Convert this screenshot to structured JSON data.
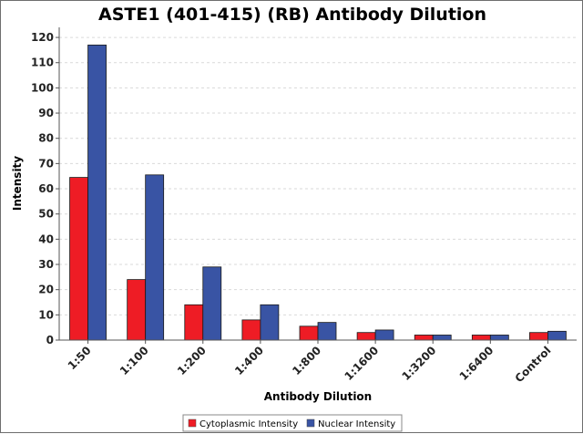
{
  "chart_data": {
    "type": "bar",
    "title": "ASTE1 (401-415) (RB) Antibody Dilution",
    "xlabel": "Antibody Dilution",
    "ylabel": "Intensity",
    "ylim": [
      0,
      124
    ],
    "yticks": [
      0,
      10,
      20,
      30,
      40,
      50,
      60,
      70,
      80,
      90,
      100,
      110,
      120
    ],
    "grid": true,
    "legend_position": "bottom-center",
    "categories": [
      "1:50",
      "1:100",
      "1:200",
      "1:400",
      "1:800",
      "1:1600",
      "1:3200",
      "1:6400",
      "Control"
    ],
    "series": [
      {
        "name": "Cytoplasmic Intensity",
        "color": "#ee1c25",
        "values": [
          64.5,
          24,
          14,
          8,
          5.5,
          3,
          2,
          2,
          3
        ]
      },
      {
        "name": "Nuclear Intensity",
        "color": "#3954a4",
        "values": [
          117,
          65.5,
          29,
          14,
          7,
          4,
          2,
          2,
          3.5
        ]
      }
    ]
  }
}
